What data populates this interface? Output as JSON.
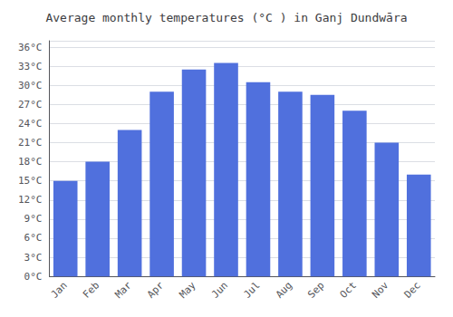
{
  "chart_data": {
    "type": "bar",
    "title": "Average monthly temperatures (°C ) in Ganj Dundwāra",
    "categories": [
      "Jan",
      "Feb",
      "Mar",
      "Apr",
      "May",
      "Jun",
      "Jul",
      "Aug",
      "Sep",
      "Oct",
      "Nov",
      "Dec"
    ],
    "values": [
      15,
      18,
      23,
      29,
      32.5,
      33.5,
      30.5,
      29,
      28.5,
      26,
      21,
      16
    ],
    "ylim": [
      0,
      37
    ],
    "yticks": [
      {
        "value": 0,
        "label": "0°C"
      },
      {
        "value": 3,
        "label": "3°C"
      },
      {
        "value": 6,
        "label": "6°C"
      },
      {
        "value": 9,
        "label": "9°C"
      },
      {
        "value": 12,
        "label": "12°C"
      },
      {
        "value": 15,
        "label": "15°C"
      },
      {
        "value": 18,
        "label": "18°C"
      },
      {
        "value": 21,
        "label": "21°C"
      },
      {
        "value": 24,
        "label": "24°C"
      },
      {
        "value": 27,
        "label": "27°C"
      },
      {
        "value": 30,
        "label": "30°C"
      },
      {
        "value": 33,
        "label": "33°C"
      },
      {
        "value": 36,
        "label": "36°C"
      }
    ],
    "grid": true
  }
}
